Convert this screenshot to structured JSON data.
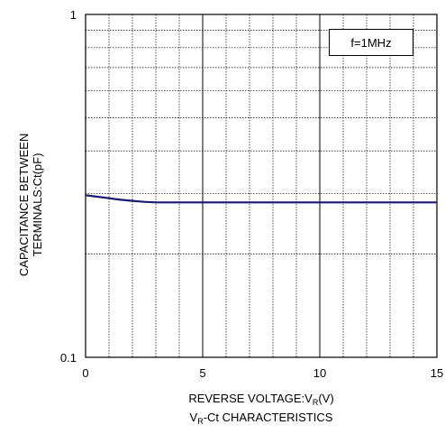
{
  "chart_data": {
    "type": "line",
    "title": "",
    "xlabel_parts": [
      "REVERSE VOLTAGE:V",
      "R",
      "(V)"
    ],
    "ylabel_lines": [
      "CAPACITANCE BETWEEN",
      "TERMINALS:Ct(pF)"
    ],
    "caption_parts": [
      "V",
      "R",
      "-Ct CHARACTERISTICS"
    ],
    "annotation": "f=1MHz",
    "xlim": [
      0,
      15
    ],
    "ylim": [
      0.1,
      1
    ],
    "yscale": "log",
    "x_tick_labels": [
      "0",
      "5",
      "10",
      "15"
    ],
    "x_ticks": [
      0,
      5,
      10,
      15
    ],
    "y_tick_labels": [
      "0.1",
      "1"
    ],
    "y_ticks": [
      0.1,
      1
    ],
    "grid": true,
    "series": [
      {
        "color": "#1a1a6e",
        "x": [
          0,
          0.5,
          1,
          1.5,
          2,
          2.5,
          3,
          3.5,
          4,
          5,
          7,
          10,
          15
        ],
        "y": [
          0.297,
          0.294,
          0.291,
          0.288,
          0.286,
          0.284,
          0.283,
          0.283,
          0.283,
          0.283,
          0.283,
          0.283,
          0.283
        ]
      }
    ]
  }
}
